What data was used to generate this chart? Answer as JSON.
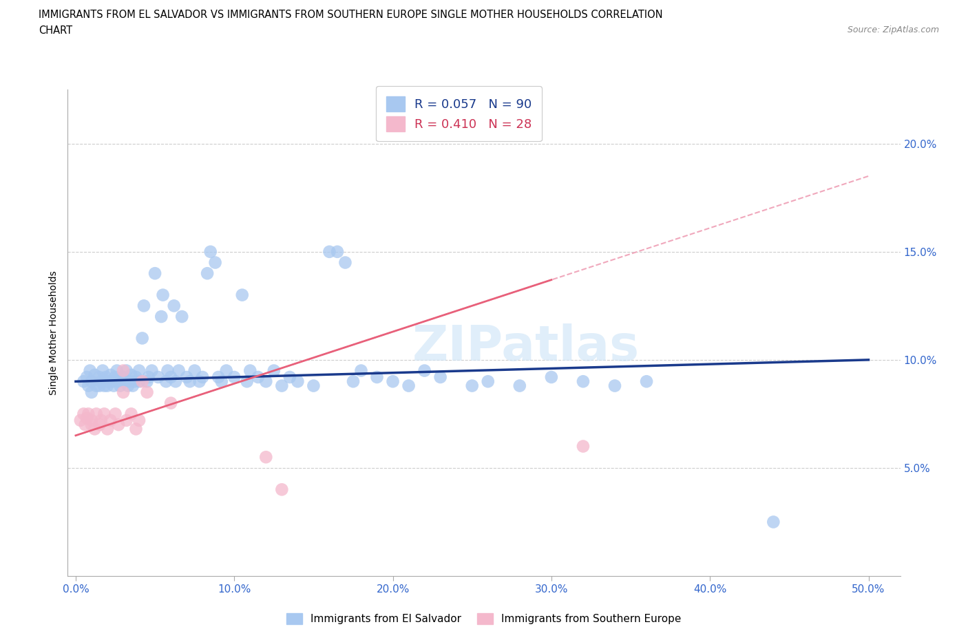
{
  "title_line1": "IMMIGRANTS FROM EL SALVADOR VS IMMIGRANTS FROM SOUTHERN EUROPE SINGLE MOTHER HOUSEHOLDS CORRELATION",
  "title_line2": "CHART",
  "source": "Source: ZipAtlas.com",
  "ylabel": "Single Mother Households",
  "xlim": [
    -0.005,
    0.52
  ],
  "ylim": [
    0.0,
    0.225
  ],
  "xticks": [
    0.0,
    0.1,
    0.2,
    0.3,
    0.4,
    0.5
  ],
  "yticks": [
    0.05,
    0.1,
    0.15,
    0.2
  ],
  "xticklabels": [
    "0.0%",
    "10.0%",
    "20.0%",
    "30.0%",
    "40.0%",
    "50.0%"
  ],
  "yticklabels": [
    "5.0%",
    "10.0%",
    "15.0%",
    "20.0%"
  ],
  "R_blue": 0.057,
  "N_blue": 90,
  "R_pink": 0.41,
  "N_pink": 28,
  "blue_color": "#a8c8f0",
  "pink_color": "#f4b8cc",
  "blue_line_color": "#1a3a8c",
  "pink_line_color": "#e8607a",
  "pink_dash_color": "#f0a8bc",
  "watermark": "ZIPatlas",
  "blue_points": [
    [
      0.005,
      0.09
    ],
    [
      0.007,
      0.092
    ],
    [
      0.008,
      0.088
    ],
    [
      0.009,
      0.095
    ],
    [
      0.01,
      0.09
    ],
    [
      0.01,
      0.085
    ],
    [
      0.012,
      0.093
    ],
    [
      0.013,
      0.088
    ],
    [
      0.015,
      0.092
    ],
    [
      0.015,
      0.088
    ],
    [
      0.016,
      0.09
    ],
    [
      0.017,
      0.095
    ],
    [
      0.018,
      0.088
    ],
    [
      0.019,
      0.092
    ],
    [
      0.02,
      0.09
    ],
    [
      0.02,
      0.088
    ],
    [
      0.022,
      0.093
    ],
    [
      0.023,
      0.09
    ],
    [
      0.024,
      0.088
    ],
    [
      0.025,
      0.092
    ],
    [
      0.026,
      0.095
    ],
    [
      0.027,
      0.09
    ],
    [
      0.028,
      0.088
    ],
    [
      0.03,
      0.092
    ],
    [
      0.03,
      0.09
    ],
    [
      0.032,
      0.095
    ],
    [
      0.033,
      0.088
    ],
    [
      0.034,
      0.09
    ],
    [
      0.035,
      0.093
    ],
    [
      0.036,
      0.088
    ],
    [
      0.037,
      0.09
    ],
    [
      0.038,
      0.092
    ],
    [
      0.04,
      0.095
    ],
    [
      0.04,
      0.09
    ],
    [
      0.042,
      0.11
    ],
    [
      0.043,
      0.125
    ],
    [
      0.045,
      0.09
    ],
    [
      0.046,
      0.092
    ],
    [
      0.048,
      0.095
    ],
    [
      0.05,
      0.14
    ],
    [
      0.052,
      0.092
    ],
    [
      0.054,
      0.12
    ],
    [
      0.055,
      0.13
    ],
    [
      0.057,
      0.09
    ],
    [
      0.058,
      0.095
    ],
    [
      0.06,
      0.092
    ],
    [
      0.062,
      0.125
    ],
    [
      0.063,
      0.09
    ],
    [
      0.065,
      0.095
    ],
    [
      0.067,
      0.12
    ],
    [
      0.07,
      0.092
    ],
    [
      0.072,
      0.09
    ],
    [
      0.075,
      0.095
    ],
    [
      0.078,
      0.09
    ],
    [
      0.08,
      0.092
    ],
    [
      0.083,
      0.14
    ],
    [
      0.085,
      0.15
    ],
    [
      0.088,
      0.145
    ],
    [
      0.09,
      0.092
    ],
    [
      0.092,
      0.09
    ],
    [
      0.095,
      0.095
    ],
    [
      0.1,
      0.092
    ],
    [
      0.105,
      0.13
    ],
    [
      0.108,
      0.09
    ],
    [
      0.11,
      0.095
    ],
    [
      0.115,
      0.092
    ],
    [
      0.12,
      0.09
    ],
    [
      0.125,
      0.095
    ],
    [
      0.13,
      0.088
    ],
    [
      0.135,
      0.092
    ],
    [
      0.14,
      0.09
    ],
    [
      0.15,
      0.088
    ],
    [
      0.16,
      0.15
    ],
    [
      0.165,
      0.15
    ],
    [
      0.17,
      0.145
    ],
    [
      0.175,
      0.09
    ],
    [
      0.18,
      0.095
    ],
    [
      0.19,
      0.092
    ],
    [
      0.2,
      0.09
    ],
    [
      0.21,
      0.088
    ],
    [
      0.22,
      0.095
    ],
    [
      0.23,
      0.092
    ],
    [
      0.25,
      0.088
    ],
    [
      0.26,
      0.09
    ],
    [
      0.28,
      0.088
    ],
    [
      0.3,
      0.092
    ],
    [
      0.32,
      0.09
    ],
    [
      0.34,
      0.088
    ],
    [
      0.36,
      0.09
    ],
    [
      0.44,
      0.025
    ]
  ],
  "pink_points": [
    [
      0.003,
      0.072
    ],
    [
      0.005,
      0.075
    ],
    [
      0.006,
      0.07
    ],
    [
      0.007,
      0.073
    ],
    [
      0.008,
      0.075
    ],
    [
      0.01,
      0.07
    ],
    [
      0.01,
      0.072
    ],
    [
      0.012,
      0.068
    ],
    [
      0.013,
      0.075
    ],
    [
      0.015,
      0.07
    ],
    [
      0.016,
      0.072
    ],
    [
      0.018,
      0.075
    ],
    [
      0.02,
      0.068
    ],
    [
      0.022,
      0.072
    ],
    [
      0.025,
      0.075
    ],
    [
      0.027,
      0.07
    ],
    [
      0.03,
      0.095
    ],
    [
      0.03,
      0.085
    ],
    [
      0.032,
      0.072
    ],
    [
      0.035,
      0.075
    ],
    [
      0.038,
      0.068
    ],
    [
      0.04,
      0.072
    ],
    [
      0.042,
      0.09
    ],
    [
      0.045,
      0.085
    ],
    [
      0.06,
      0.08
    ],
    [
      0.12,
      0.055
    ],
    [
      0.13,
      0.04
    ],
    [
      0.32,
      0.06
    ]
  ],
  "blue_reg": [
    0.0,
    0.5,
    0.09,
    0.1
  ],
  "pink_reg": [
    0.0,
    0.5,
    0.065,
    0.185
  ]
}
